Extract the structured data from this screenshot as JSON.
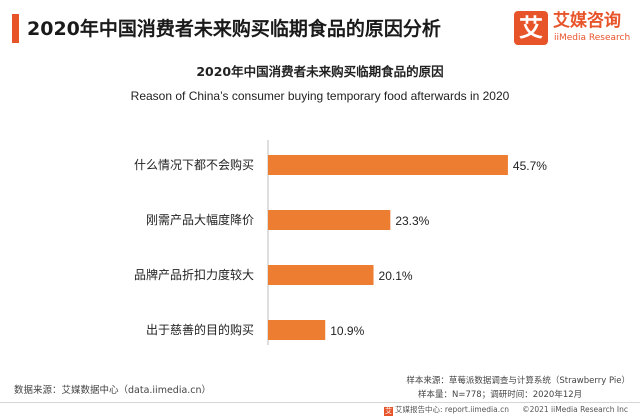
{
  "header": {
    "title": "2020年中国消费者未来购买临期食品的原因分析"
  },
  "logo": {
    "mark": "艾",
    "name_cn": "艾媒咨询",
    "name_en": "iiMedia Research"
  },
  "chart_data": {
    "type": "bar",
    "orientation": "horizontal",
    "title": "2020年中国消费者未来购买临期食品的原因",
    "subtitle": "Reason of China’s consumer buying temporary food afterwards in 2020",
    "categories": [
      "什么情况下都不会购买",
      "刚需产品大幅度降价",
      "品牌产品折扣力度较大",
      "出于慈善的目的购买"
    ],
    "values": [
      45.7,
      23.3,
      20.1,
      10.9
    ],
    "value_labels": [
      "45.7%",
      "23.3%",
      "20.1%",
      "10.9%"
    ],
    "bar_color": "#ed7d31",
    "grid": false
  },
  "sources": {
    "data_source": "数据来源：艾媒数据中心（data.iimedia.cn）",
    "sample_source": "样本来源：草莓派数据调查与计算系统（Strawberry Pie）",
    "sample_size": "样本量：N=778；调研时间：2020年12月"
  },
  "footer": {
    "left_mark": "艾",
    "left": "艾媒报告中心: report.iimedia.cn",
    "right": "©2021  iiMedia Research  Inc"
  },
  "colors": {
    "accent": "#e8542a",
    "bar": "#ed7d31"
  }
}
